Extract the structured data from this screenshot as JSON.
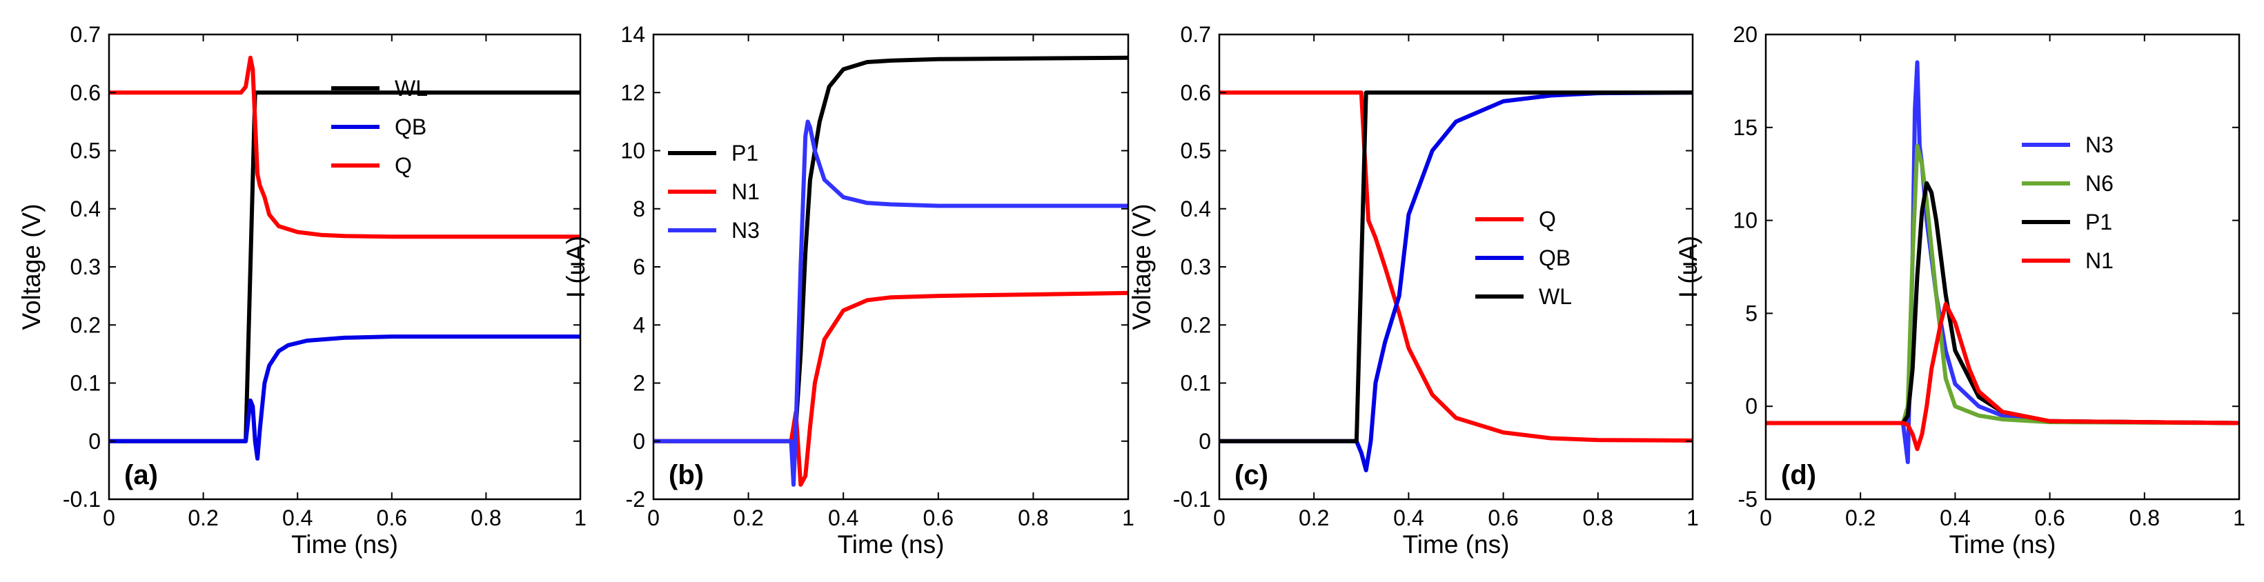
{
  "chart_data": [
    {
      "type": "line",
      "panel_label": "(a)",
      "xlabel": "Time (ns)",
      "ylabel": "Voltage (V)",
      "xlim": [
        0,
        1
      ],
      "ylim": [
        -0.1,
        0.7
      ],
      "xticks": [
        0,
        0.2,
        0.4,
        0.6,
        0.8,
        1
      ],
      "xtick_labels": [
        "0",
        "0.2",
        "0.4",
        "0.6",
        "0.8",
        "1"
      ],
      "yticks": [
        -0.1,
        0,
        0.1,
        0.2,
        0.3,
        0.4,
        0.5,
        0.6,
        0.7
      ],
      "ytick_labels": [
        "-0.1",
        "0",
        "0.1",
        "0.2",
        "0.3",
        "0.4",
        "0.5",
        "0.6",
        "0.7"
      ],
      "legend_position": "upper-middle",
      "series": [
        {
          "name": "WL",
          "color": "#000000",
          "x": [
            0,
            0.29,
            0.31,
            1
          ],
          "y": [
            0,
            0,
            0.6,
            0.6
          ]
        },
        {
          "name": "QB",
          "color": "#0000e6",
          "x": [
            0,
            0.29,
            0.3,
            0.305,
            0.31,
            0.315,
            0.32,
            0.33,
            0.34,
            0.36,
            0.38,
            0.42,
            0.5,
            0.6,
            1
          ],
          "y": [
            0,
            0,
            0.07,
            0.06,
            0.0,
            -0.03,
            0.02,
            0.1,
            0.13,
            0.155,
            0.165,
            0.173,
            0.178,
            0.18,
            0.18
          ]
        },
        {
          "name": "Q",
          "color": "#ff0000",
          "x": [
            0,
            0.28,
            0.29,
            0.3,
            0.305,
            0.31,
            0.315,
            0.32,
            0.33,
            0.34,
            0.36,
            0.4,
            0.45,
            0.5,
            0.6,
            1
          ],
          "y": [
            0.6,
            0.6,
            0.61,
            0.66,
            0.64,
            0.55,
            0.46,
            0.44,
            0.42,
            0.39,
            0.37,
            0.36,
            0.355,
            0.353,
            0.352,
            0.352
          ]
        }
      ]
    },
    {
      "type": "line",
      "panel_label": "(b)",
      "xlabel": "Time (ns)",
      "ylabel": "I (uA)",
      "xlim": [
        0,
        1
      ],
      "ylim": [
        -2,
        14
      ],
      "xticks": [
        0,
        0.2,
        0.4,
        0.6,
        0.8,
        1
      ],
      "xtick_labels": [
        "0",
        "0.2",
        "0.4",
        "0.6",
        "0.8",
        "1"
      ],
      "yticks": [
        -2,
        0,
        2,
        4,
        6,
        8,
        10,
        12,
        14
      ],
      "ytick_labels": [
        "-2",
        "0",
        "2",
        "4",
        "6",
        "8",
        "10",
        "12",
        "14"
      ],
      "legend_position": "left",
      "series": [
        {
          "name": "P1",
          "color": "#000000",
          "x": [
            0,
            0.29,
            0.3,
            0.31,
            0.32,
            0.33,
            0.35,
            0.37,
            0.4,
            0.45,
            0.5,
            0.6,
            1
          ],
          "y": [
            0,
            0,
            0.5,
            3,
            6.5,
            9,
            11,
            12.2,
            12.8,
            13.05,
            13.1,
            13.15,
            13.2
          ]
        },
        {
          "name": "N1",
          "color": "#ff0000",
          "x": [
            0,
            0.29,
            0.3,
            0.31,
            0.32,
            0.33,
            0.34,
            0.36,
            0.4,
            0.45,
            0.5,
            0.6,
            1
          ],
          "y": [
            0,
            0,
            1.0,
            -1.5,
            -1.2,
            0.5,
            2.0,
            3.5,
            4.5,
            4.85,
            4.95,
            5.0,
            5.1
          ]
        },
        {
          "name": "N3",
          "color": "#3333ff",
          "x": [
            0,
            0.29,
            0.295,
            0.3,
            0.31,
            0.32,
            0.325,
            0.33,
            0.34,
            0.36,
            0.4,
            0.45,
            0.5,
            0.6,
            1
          ],
          "y": [
            0,
            0,
            -1.5,
            0.5,
            6,
            10.5,
            11,
            10.8,
            10,
            9.0,
            8.4,
            8.2,
            8.15,
            8.1,
            8.1
          ]
        }
      ]
    },
    {
      "type": "line",
      "panel_label": "(c)",
      "xlabel": "Time (ns)",
      "ylabel": "Voltage (V)",
      "xlim": [
        0,
        1
      ],
      "ylim": [
        -0.1,
        0.7
      ],
      "xticks": [
        0,
        0.2,
        0.4,
        0.6,
        0.8,
        1
      ],
      "xtick_labels": [
        "0",
        "0.2",
        "0.4",
        "0.6",
        "0.8",
        "1"
      ],
      "yticks": [
        -0.1,
        0,
        0.1,
        0.2,
        0.3,
        0.4,
        0.5,
        0.6,
        0.7
      ],
      "ytick_labels": [
        "-0.1",
        "0",
        "0.1",
        "0.2",
        "0.3",
        "0.4",
        "0.5",
        "0.6",
        "0.7"
      ],
      "legend_position": "right-middle",
      "series": [
        {
          "name": "Q",
          "color": "#ff0000",
          "x": [
            0,
            0.28,
            0.29,
            0.3,
            0.31,
            0.315,
            0.32,
            0.33,
            0.35,
            0.38,
            0.4,
            0.45,
            0.5,
            0.6,
            0.7,
            0.8,
            1
          ],
          "y": [
            0.6,
            0.6,
            0.6,
            0.6,
            0.45,
            0.38,
            0.37,
            0.35,
            0.3,
            0.22,
            0.16,
            0.08,
            0.04,
            0.015,
            0.005,
            0.002,
            0.001
          ]
        },
        {
          "name": "QB",
          "color": "#0000e6",
          "x": [
            0,
            0.29,
            0.3,
            0.31,
            0.32,
            0.33,
            0.35,
            0.38,
            0.4,
            0.45,
            0.5,
            0.6,
            0.7,
            0.8,
            1
          ],
          "y": [
            0,
            0,
            -0.02,
            -0.05,
            0.0,
            0.1,
            0.17,
            0.25,
            0.39,
            0.5,
            0.55,
            0.585,
            0.595,
            0.599,
            0.6
          ]
        },
        {
          "name": "WL",
          "color": "#000000",
          "x": [
            0,
            0.29,
            0.31,
            1
          ],
          "y": [
            0,
            0,
            0.6,
            0.6
          ]
        }
      ]
    },
    {
      "type": "line",
      "panel_label": "(d)",
      "xlabel": "Time (ns)",
      "ylabel": "I (uA)",
      "xlim": [
        0,
        1
      ],
      "ylim": [
        -5,
        20
      ],
      "xticks": [
        0,
        0.2,
        0.4,
        0.6,
        0.8,
        1
      ],
      "xtick_labels": [
        "0",
        "0.2",
        "0.4",
        "0.6",
        "0.8",
        "1"
      ],
      "yticks": [
        -5,
        0,
        5,
        10,
        15,
        20
      ],
      "ytick_labels": [
        "-5",
        "0",
        "5",
        "10",
        "15",
        "20"
      ],
      "legend_position": "upper-right",
      "series": [
        {
          "name": "N3",
          "color": "#3333ff",
          "x": [
            0,
            0.29,
            0.3,
            0.31,
            0.315,
            0.32,
            0.325,
            0.33,
            0.34,
            0.36,
            0.38,
            0.4,
            0.45,
            0.5,
            0.6,
            1
          ],
          "y": [
            -0.9,
            -0.9,
            -3,
            8,
            16,
            18.5,
            14,
            13,
            10,
            6,
            3,
            1.2,
            0,
            -0.5,
            -0.8,
            -0.9
          ]
        },
        {
          "name": "N6",
          "color": "#6aa832",
          "x": [
            0,
            0.29,
            0.3,
            0.31,
            0.32,
            0.33,
            0.34,
            0.36,
            0.38,
            0.4,
            0.45,
            0.5,
            0.6,
            1
          ],
          "y": [
            -0.9,
            -0.9,
            0,
            8,
            14,
            13,
            11,
            6,
            1.5,
            0,
            -0.5,
            -0.7,
            -0.85,
            -0.9
          ]
        },
        {
          "name": "P1",
          "color": "#000000",
          "x": [
            0,
            0.29,
            0.3,
            0.31,
            0.32,
            0.33,
            0.34,
            0.35,
            0.36,
            0.38,
            0.4,
            0.45,
            0.5,
            0.6,
            1
          ],
          "y": [
            -0.9,
            -0.9,
            -0.5,
            2,
            7,
            10.5,
            12,
            11.5,
            10,
            6,
            3,
            0.5,
            -0.3,
            -0.8,
            -0.9
          ]
        },
        {
          "name": "N1",
          "color": "#ff0000",
          "x": [
            0,
            0.29,
            0.3,
            0.31,
            0.32,
            0.33,
            0.34,
            0.35,
            0.37,
            0.38,
            0.4,
            0.43,
            0.45,
            0.5,
            0.6,
            1
          ],
          "y": [
            -0.9,
            -0.9,
            -1.0,
            -1.5,
            -2.3,
            -1.5,
            0,
            2,
            4.5,
            5.5,
            4.5,
            2,
            0.8,
            -0.3,
            -0.8,
            -0.9
          ]
        }
      ]
    }
  ]
}
